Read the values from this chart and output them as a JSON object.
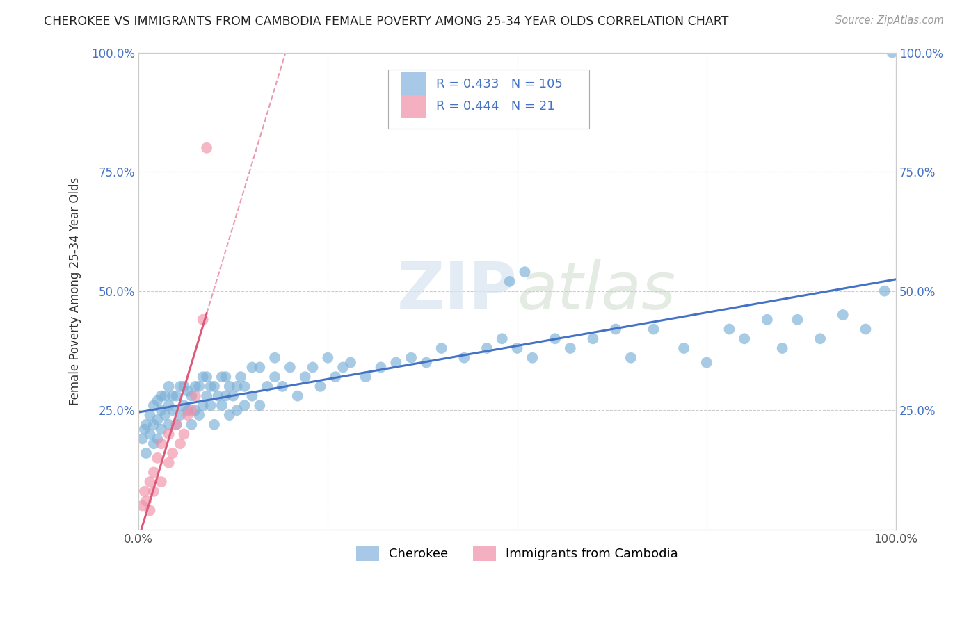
{
  "title": "CHEROKEE VS IMMIGRANTS FROM CAMBODIA FEMALE POVERTY AMONG 25-34 YEAR OLDS CORRELATION CHART",
  "source": "Source: ZipAtlas.com",
  "ylabel": "Female Poverty Among 25-34 Year Olds",
  "xlim": [
    0,
    1.0
  ],
  "ylim": [
    0,
    1.0
  ],
  "xticks": [
    0.0,
    0.25,
    0.5,
    0.75,
    1.0
  ],
  "xticklabels": [
    "0.0%",
    "",
    "",
    "",
    "100.0%"
  ],
  "yticks": [
    0.0,
    0.25,
    0.5,
    0.75,
    1.0
  ],
  "yticklabels": [
    "",
    "25.0%",
    "50.0%",
    "75.0%",
    "100.0%"
  ],
  "background_color": "#ffffff",
  "grid_color": "#cccccc",
  "watermark": "ZIPatlas",
  "cherokee_R": 0.433,
  "cherokee_N": 105,
  "cambodia_R": 0.444,
  "cambodia_N": 21,
  "cherokee_color": "#a8c8e8",
  "cambodia_color": "#f4b0c0",
  "tick_color": "#4472c4",
  "cherokee_scatter_color": "#7ab0d8",
  "cambodia_scatter_color": "#f090a8",
  "cherokee_line_color": "#4472c4",
  "cambodia_line_color": "#e05878",
  "cherokee_label": "Cherokee",
  "cambodia_label": "Immigrants from Cambodia",
  "cherokee_x": [
    0.005,
    0.008,
    0.01,
    0.01,
    0.015,
    0.015,
    0.02,
    0.02,
    0.02,
    0.025,
    0.025,
    0.025,
    0.03,
    0.03,
    0.03,
    0.035,
    0.035,
    0.04,
    0.04,
    0.04,
    0.045,
    0.045,
    0.05,
    0.05,
    0.055,
    0.055,
    0.06,
    0.06,
    0.065,
    0.065,
    0.07,
    0.07,
    0.075,
    0.075,
    0.08,
    0.08,
    0.085,
    0.085,
    0.09,
    0.09,
    0.095,
    0.095,
    0.1,
    0.1,
    0.105,
    0.11,
    0.11,
    0.115,
    0.115,
    0.12,
    0.12,
    0.125,
    0.13,
    0.13,
    0.135,
    0.14,
    0.14,
    0.15,
    0.15,
    0.16,
    0.16,
    0.17,
    0.18,
    0.18,
    0.19,
    0.2,
    0.21,
    0.22,
    0.23,
    0.24,
    0.25,
    0.26,
    0.27,
    0.28,
    0.3,
    0.32,
    0.34,
    0.36,
    0.38,
    0.4,
    0.43,
    0.46,
    0.48,
    0.5,
    0.52,
    0.55,
    0.57,
    0.6,
    0.63,
    0.65,
    0.68,
    0.72,
    0.75,
    0.78,
    0.8,
    0.83,
    0.85,
    0.87,
    0.9,
    0.93,
    0.96,
    0.985,
    0.51,
    0.49,
    0.995
  ],
  "cherokee_y": [
    0.19,
    0.21,
    0.16,
    0.22,
    0.24,
    0.2,
    0.18,
    0.22,
    0.26,
    0.23,
    0.27,
    0.19,
    0.21,
    0.25,
    0.28,
    0.24,
    0.28,
    0.22,
    0.26,
    0.3,
    0.25,
    0.28,
    0.22,
    0.28,
    0.24,
    0.3,
    0.26,
    0.3,
    0.25,
    0.29,
    0.22,
    0.28,
    0.25,
    0.3,
    0.24,
    0.3,
    0.26,
    0.32,
    0.28,
    0.32,
    0.26,
    0.3,
    0.22,
    0.3,
    0.28,
    0.26,
    0.32,
    0.28,
    0.32,
    0.24,
    0.3,
    0.28,
    0.25,
    0.3,
    0.32,
    0.26,
    0.3,
    0.28,
    0.34,
    0.26,
    0.34,
    0.3,
    0.32,
    0.36,
    0.3,
    0.34,
    0.28,
    0.32,
    0.34,
    0.3,
    0.36,
    0.32,
    0.34,
    0.35,
    0.32,
    0.34,
    0.35,
    0.36,
    0.35,
    0.38,
    0.36,
    0.38,
    0.4,
    0.38,
    0.36,
    0.4,
    0.38,
    0.4,
    0.42,
    0.36,
    0.42,
    0.38,
    0.35,
    0.42,
    0.4,
    0.44,
    0.38,
    0.44,
    0.4,
    0.45,
    0.42,
    0.5,
    0.54,
    0.52,
    1.0
  ],
  "cambodia_x": [
    0.005,
    0.008,
    0.01,
    0.015,
    0.015,
    0.02,
    0.02,
    0.025,
    0.03,
    0.03,
    0.04,
    0.04,
    0.045,
    0.05,
    0.055,
    0.06,
    0.065,
    0.07,
    0.075,
    0.085,
    0.09
  ],
  "cambodia_y": [
    0.05,
    0.08,
    0.06,
    0.1,
    0.04,
    0.12,
    0.08,
    0.15,
    0.1,
    0.18,
    0.14,
    0.2,
    0.16,
    0.22,
    0.18,
    0.2,
    0.24,
    0.25,
    0.28,
    0.44,
    0.8
  ]
}
